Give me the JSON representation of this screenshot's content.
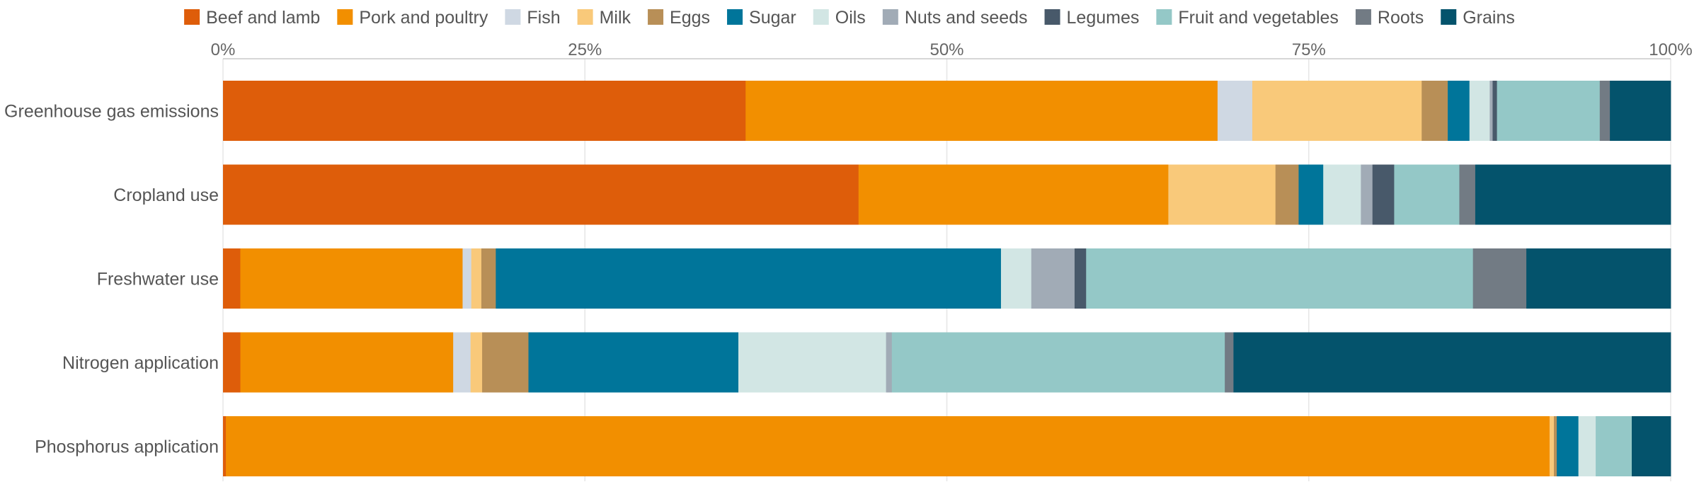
{
  "chart_data": {
    "type": "bar",
    "orientation": "horizontal",
    "stacked": true,
    "normalized": true,
    "legend_position": "top",
    "grid": true,
    "xlim": [
      0,
      100
    ],
    "x_ticks": [
      "0%",
      "25%",
      "50%",
      "75%",
      "100%"
    ],
    "categories": [
      "Greenhouse gas emissions",
      "Cropland use",
      "Freshwater use",
      "Nitrogen application",
      "Phosphorus application"
    ],
    "series": [
      {
        "name": "Beef and lamb",
        "color": "#de5d0a",
        "values": [
          36.1,
          43.9,
          1.2,
          1.2,
          0.2
        ]
      },
      {
        "name": "Pork and poultry",
        "color": "#f28f00",
        "values": [
          32.6,
          21.4,
          15.4,
          14.7,
          91.8
        ]
      },
      {
        "name": "Fish",
        "color": "#cfd8e3",
        "values": [
          2.4,
          0.0,
          0.6,
          1.2,
          0.0
        ]
      },
      {
        "name": "Milk",
        "color": "#f9c97a",
        "values": [
          11.7,
          7.4,
          0.7,
          0.8,
          0.3
        ]
      },
      {
        "name": "Eggs",
        "color": "#b88f57",
        "values": [
          1.8,
          1.6,
          1.0,
          3.2,
          0.2
        ]
      },
      {
        "name": "Sugar",
        "color": "#00759a",
        "values": [
          1.5,
          1.7,
          35.0,
          14.5,
          1.5
        ]
      },
      {
        "name": "Oils",
        "color": "#d2e6e4",
        "values": [
          1.4,
          2.6,
          2.1,
          10.2,
          1.2
        ]
      },
      {
        "name": "Nuts and seeds",
        "color": "#a1abb6",
        "values": [
          0.2,
          0.8,
          3.0,
          0.4,
          0.0
        ]
      },
      {
        "name": "Legumes",
        "color": "#48596a",
        "values": [
          0.3,
          1.5,
          0.8,
          0.0,
          0.0
        ]
      },
      {
        "name": "Fruit and vegetables",
        "color": "#94c8c7",
        "values": [
          7.1,
          4.5,
          26.8,
          23.0,
          2.5
        ]
      },
      {
        "name": "Roots",
        "color": "#727b84",
        "values": [
          0.7,
          1.1,
          3.7,
          0.6,
          0.0
        ]
      },
      {
        "name": "Grains",
        "color": "#04536c",
        "values": [
          4.2,
          13.5,
          10.0,
          30.2,
          2.7
        ]
      }
    ]
  }
}
